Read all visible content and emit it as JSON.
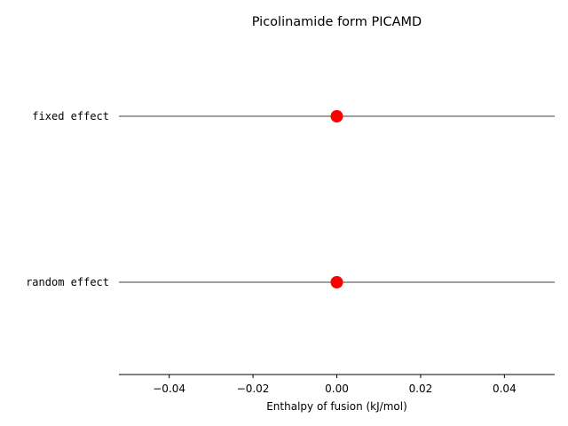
{
  "chart_data": {
    "type": "scatter",
    "title": "Picolinamide form PICAMD",
    "xlabel": "Enthalpy of fusion (kJ/mol)",
    "ylabel": "",
    "xlim": [
      -0.052,
      0.052
    ],
    "x_ticks": [
      -0.04,
      -0.02,
      0.0,
      0.02,
      0.04
    ],
    "x_tick_labels": [
      "−0.04",
      "−0.02",
      "0.00",
      "0.02",
      "0.04"
    ],
    "categories": [
      "fixed effect",
      "random effect"
    ],
    "points": [
      {
        "label": "fixed effect",
        "value": 0.0,
        "ci": [
          -0.052,
          0.052
        ]
      },
      {
        "label": "random effect",
        "value": 0.0,
        "ci": [
          -0.052,
          0.052
        ]
      }
    ],
    "colors": {
      "point": "#ff0000",
      "interval": "#808080",
      "axis": "#000000"
    }
  }
}
